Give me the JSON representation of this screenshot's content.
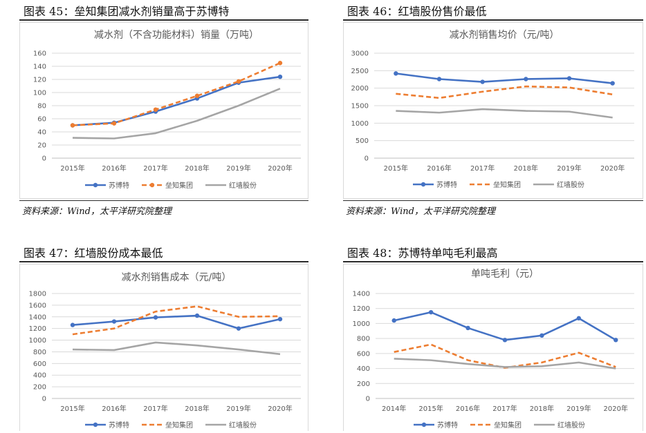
{
  "colors": {
    "s1": "#4472C4",
    "s2": "#ED7D31",
    "s3": "#A5A5A5",
    "grid": "#d9d9d9",
    "axis": "#595959"
  },
  "panels": [
    {
      "fig_title": "图表 45：垒知集团减水剂销量高于苏博特",
      "source": "资料来源：Wind，太平洋研究院整理"
    },
    {
      "fig_title": "图表 46：红墙股份售价最低",
      "source": "资料来源：Wind，太平洋研究院整理"
    },
    {
      "fig_title": "图表 47：红墙股份成本最低",
      "source": ""
    },
    {
      "fig_title": "图表 48：苏博特单吨毛利最高",
      "source": ""
    }
  ],
  "chart_data": [
    {
      "type": "line",
      "title": "减水剂（不含功能材料）销量（万吨）",
      "categories": [
        "2015年",
        "2016年",
        "2017年",
        "2018年",
        "2019年",
        "2020年"
      ],
      "ylim": [
        0,
        160
      ],
      "yticks": [
        0,
        20,
        40,
        60,
        80,
        100,
        120,
        140,
        160
      ],
      "grid": true,
      "legend": "bottom",
      "series": [
        {
          "name": "苏博特",
          "values": [
            50,
            54,
            71,
            91,
            115,
            124
          ]
        },
        {
          "name": "垒知集团",
          "values": [
            50,
            53,
            74,
            95,
            117,
            145
          ]
        },
        {
          "name": "红墙股份",
          "values": [
            31,
            30,
            38,
            57,
            80,
            106
          ]
        }
      ]
    },
    {
      "type": "line",
      "title": "减水剂销售均价（元/吨）",
      "categories": [
        "2015年",
        "2016年",
        "2017年",
        "2018年",
        "2019年",
        "2020年"
      ],
      "ylim": [
        0,
        3000
      ],
      "yticks": [
        0,
        500,
        1000,
        1500,
        2000,
        2500,
        3000
      ],
      "grid": true,
      "legend": "bottom",
      "series": [
        {
          "name": "苏博特",
          "values": [
            2420,
            2260,
            2180,
            2260,
            2280,
            2140
          ]
        },
        {
          "name": "垒知集团",
          "values": [
            1840,
            1720,
            1900,
            2050,
            2020,
            1820
          ]
        },
        {
          "name": "红墙股份",
          "values": [
            1350,
            1300,
            1400,
            1350,
            1330,
            1160
          ]
        }
      ]
    },
    {
      "type": "line",
      "title": "减水剂销售成本（元/吨）",
      "categories": [
        "2015年",
        "2016年",
        "2017年",
        "2018年",
        "2019年",
        "2020年"
      ],
      "ylim": [
        0,
        1800
      ],
      "yticks": [
        0,
        200,
        400,
        600,
        800,
        1000,
        1200,
        1400,
        1600,
        1800
      ],
      "grid": true,
      "legend": "bottom",
      "series": [
        {
          "name": "苏博特",
          "values": [
            1260,
            1320,
            1390,
            1420,
            1200,
            1360
          ]
        },
        {
          "name": "垒知集团",
          "values": [
            1100,
            1200,
            1490,
            1580,
            1400,
            1410
          ]
        },
        {
          "name": "红墙股份",
          "values": [
            840,
            830,
            960,
            910,
            840,
            760
          ]
        }
      ]
    },
    {
      "type": "line",
      "title": "单吨毛利（元）",
      "categories": [
        "2014年",
        "2015年",
        "2016年",
        "2017年",
        "2018年",
        "2019年",
        "2020年"
      ],
      "ylim": [
        0,
        1400
      ],
      "yticks": [
        0,
        200,
        400,
        600,
        800,
        1000,
        1200,
        1400
      ],
      "grid": true,
      "legend": "bottom",
      "series": [
        {
          "name": "苏博特",
          "values": [
            1040,
            1150,
            940,
            780,
            840,
            1070,
            780
          ]
        },
        {
          "name": "垒知集团",
          "values": [
            620,
            720,
            510,
            410,
            480,
            610,
            420
          ]
        },
        {
          "name": "红墙股份",
          "values": [
            530,
            510,
            460,
            420,
            430,
            480,
            400
          ]
        }
      ]
    }
  ]
}
